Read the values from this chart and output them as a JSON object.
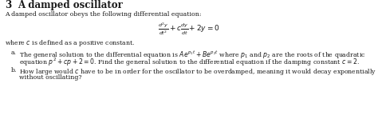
{
  "title_number": "3",
  "title_text": "A damped oscillator",
  "intro": "A damped oscillator obeys the following differential equation:",
  "equation_latex": "$\\frac{d^2y}{dt^2} + c\\frac{dy}{dt} + 2y = 0$",
  "where_text": "where $c$ is defined as a positive constant.",
  "part_a_prefix": "a.",
  "part_a_line1": "The general solution to the differential equation is $Ae^{p_1 t} + Be^{p_2 t}$ where $p_1$ and $p_2$ are the roots of the quadratic",
  "part_a_line2": "equation $p^2 + cp + 2 = 0$. Find the general solution to the differential equation if the damping constant $c = 2$.",
  "part_b_prefix": "b.",
  "part_b_line1": "How large would $c$ have to be in order for the oscillator to be overdamped, meaning it would decay exponentially",
  "part_b_line2": "without oscillating?",
  "bg_color": "#ffffff",
  "text_color": "#1a1a1a",
  "font_size_title": 8.5,
  "font_size_body": 5.6,
  "font_size_eq": 6.5
}
